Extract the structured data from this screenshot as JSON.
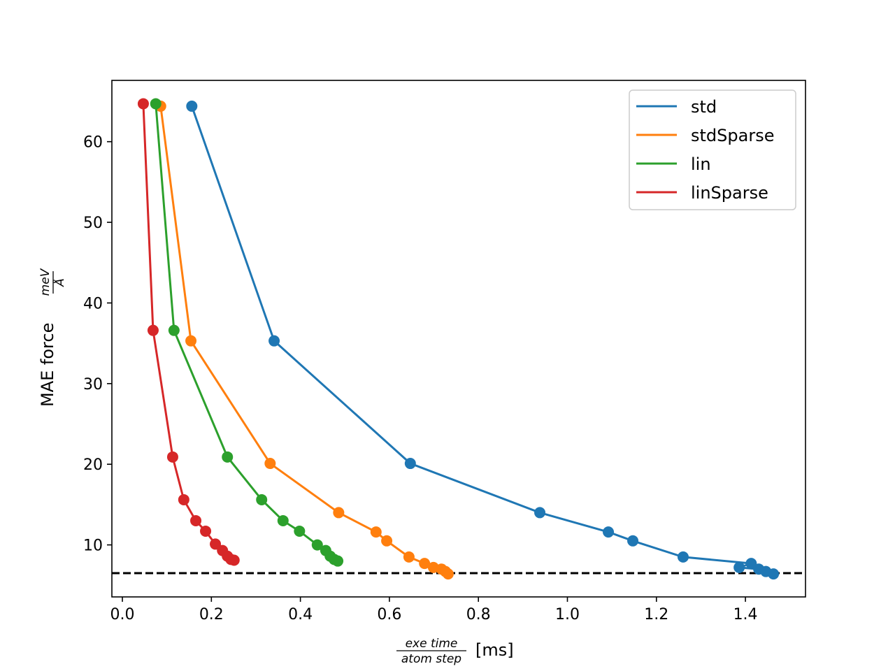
{
  "chart_data": {
    "type": "line",
    "title": "",
    "xlabel": {
      "numerator": "exe time",
      "denominator": "atom step",
      "unit": "[ms]"
    },
    "ylabel": {
      "text": "MAE force",
      "numerator": "meV",
      "denominator": "Å"
    },
    "xlim": [
      -0.0236,
      1.535
    ],
    "ylim": [
      3.55,
      67.6
    ],
    "xticks": [
      0.0,
      0.2,
      0.4,
      0.6,
      0.8,
      1.0,
      1.2,
      1.4
    ],
    "xtick_labels": [
      "0.0",
      "0.2",
      "0.4",
      "0.6",
      "0.8",
      "1.0",
      "1.2",
      "1.4"
    ],
    "yticks": [
      10,
      20,
      30,
      40,
      50,
      60
    ],
    "ytick_labels": [
      "10",
      "20",
      "30",
      "40",
      "50",
      "60"
    ],
    "grid": false,
    "legend_position": "top-right",
    "reference_line": {
      "y": 6.5,
      "style": "dashed",
      "color": "#000000"
    },
    "series": [
      {
        "name": "std",
        "color": "#1f77b4",
        "x": [
          0.156,
          0.341,
          0.647,
          0.938,
          1.092,
          1.147,
          1.26,
          1.413,
          1.386,
          1.43,
          1.446,
          1.463
        ],
        "y": [
          64.4,
          35.3,
          20.1,
          14.0,
          11.6,
          10.5,
          8.5,
          7.7,
          7.2,
          7.0,
          6.7,
          6.4
        ]
      },
      {
        "name": "stdSparse",
        "color": "#ff7f0e",
        "x": [
          0.086,
          0.154,
          0.332,
          0.486,
          0.57,
          0.594,
          0.644,
          0.679,
          0.699,
          0.717,
          0.726,
          0.732
        ],
        "y": [
          64.4,
          35.3,
          20.1,
          14.0,
          11.6,
          10.5,
          8.5,
          7.7,
          7.2,
          7.0,
          6.7,
          6.4
        ]
      },
      {
        "name": "lin",
        "color": "#2ca02c",
        "x": [
          0.075,
          0.116,
          0.236,
          0.313,
          0.361,
          0.398,
          0.438,
          0.457,
          0.467,
          0.476,
          0.484
        ],
        "y": [
          64.7,
          36.6,
          20.9,
          15.6,
          13.0,
          11.7,
          10.0,
          9.3,
          8.6,
          8.2,
          8.0
        ]
      },
      {
        "name": "linSparse",
        "color": "#d62728",
        "x": [
          0.047,
          0.069,
          0.113,
          0.138,
          0.165,
          0.187,
          0.209,
          0.225,
          0.236,
          0.244,
          0.251
        ],
        "y": [
          64.7,
          36.6,
          20.9,
          15.6,
          13.0,
          11.7,
          10.1,
          9.3,
          8.6,
          8.2,
          8.1
        ]
      }
    ]
  }
}
